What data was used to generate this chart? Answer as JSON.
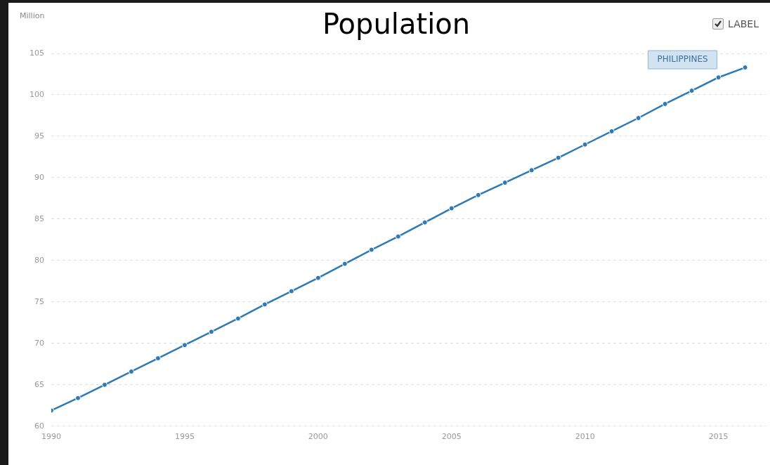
{
  "chart_data": {
    "type": "line",
    "title": "Population",
    "ylabel": "Million",
    "annotations": [
      "LABEL"
    ],
    "x": [
      1990,
      1991,
      1992,
      1993,
      1994,
      1995,
      1996,
      1997,
      1998,
      1999,
      2000,
      2001,
      2002,
      2003,
      2004,
      2005,
      2006,
      2007,
      2008,
      2009,
      2010,
      2011,
      2012,
      2013,
      2014,
      2015,
      2016
    ],
    "series": [
      {
        "name": "PHILIPPINES",
        "color": "#2f7ab3",
        "values": [
          61.9,
          63.4,
          65.0,
          66.6,
          68.2,
          69.8,
          71.4,
          73.0,
          74.7,
          76.3,
          77.9,
          79.6,
          81.3,
          82.9,
          84.6,
          86.3,
          87.9,
          89.4,
          90.9,
          92.4,
          94.0,
          95.6,
          97.2,
          98.9,
          100.5,
          102.1,
          103.3
        ]
      }
    ],
    "xlim": [
      1990,
      2016.8
    ],
    "xticks": [
      1990,
      1995,
      2000,
      2005,
      2010,
      2015
    ],
    "ylim": [
      60,
      105
    ],
    "yticks": [
      60,
      65,
      70,
      75,
      80,
      85,
      90,
      95,
      100,
      105
    ],
    "grid": "y",
    "legend": false,
    "marker": "circle",
    "line_style": "solid"
  }
}
